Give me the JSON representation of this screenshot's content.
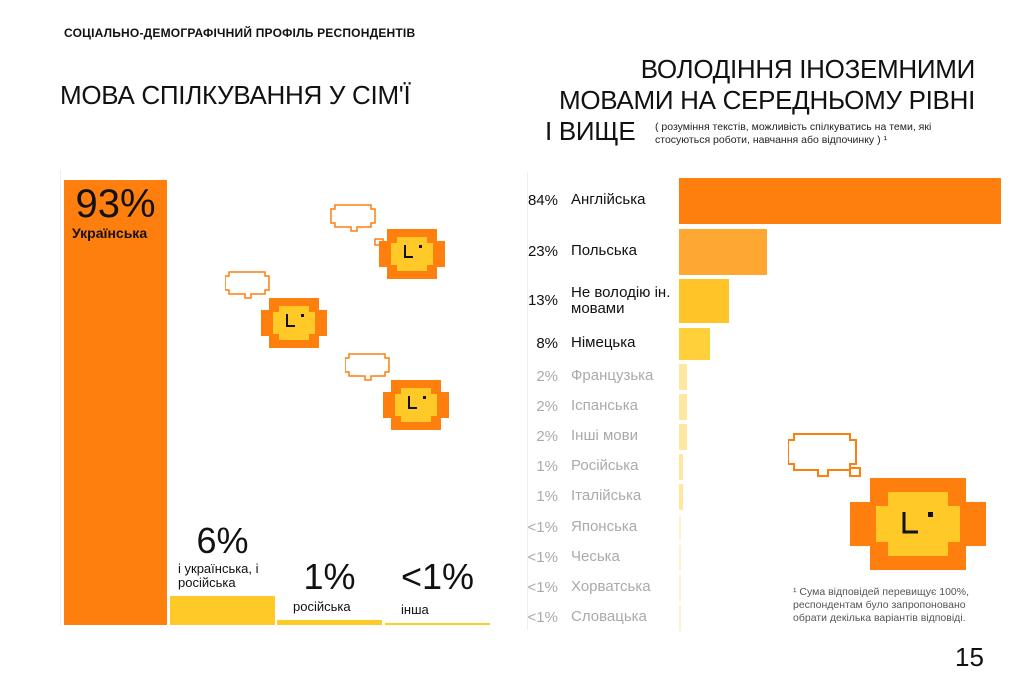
{
  "header": {
    "section_title": "СОЦІАЛЬНО-ДЕМОГРАФІЧНИЙ ПРОФІЛЬ РЕСПОНДЕНТІВ"
  },
  "left": {
    "title": "МОВА СПІЛКУВАННЯ У СІМ'Ї",
    "pct_labels": [
      "93%",
      "6%",
      "1%",
      "<1%"
    ],
    "category_labels": [
      "Українська",
      "і українська, і російська",
      "російська",
      "інша"
    ]
  },
  "right": {
    "title_line1": "ВОЛОДІННЯ ІНОЗЕМНИМИ",
    "title_line2": "МОВАМИ НА СЕРЕДНЬОМУ РІВНІ",
    "title_line3": "І ВИЩЕ",
    "subtitle": "( розуміння текстів, можливість спілкуватись на теми, які стосуються роботи, навчання або відпочинку ) ¹",
    "pct_labels": [
      "84%",
      "23%",
      "13%",
      "8%",
      "2%",
      "2%",
      "2%",
      "1%",
      "1%",
      "<1%",
      "<1%",
      "<1%",
      "<1%"
    ],
    "category_labels": [
      "Англійська",
      "Польська",
      "Не володію ін. мовами",
      "Німецька",
      "Французька",
      "Іспанська",
      "Інші мови",
      "Російська",
      "Італійська",
      "Японська",
      "Чеська",
      "Хорватська",
      "Словацька"
    ]
  },
  "chart_data": [
    {
      "type": "bar",
      "title": "МОВА СПІЛКУВАННЯ У СІМ'Ї",
      "categories": [
        "Українська",
        "і українська, і російська",
        "російська",
        "інша"
      ],
      "values": [
        93,
        6,
        1,
        0.5
      ],
      "colors": [
        "#FF7F0E",
        "#FFC928",
        "#FFC928",
        "#FFC928"
      ]
    },
    {
      "type": "bar",
      "orientation": "horizontal",
      "title": "ВОЛОДІННЯ ІНОЗЕМНИМИ МОВАМИ НА СЕРЕДНЬОМУ РІВНІ І ВИЩЕ",
      "categories": [
        "Англійська",
        "Польська",
        "Не володію ін. мовами",
        "Німецька",
        "Французька",
        "Іспанська",
        "Інші мови",
        "Російська",
        "Італійська",
        "Японська",
        "Чеська",
        "Хорватська",
        "Словацька"
      ],
      "values": [
        84,
        23,
        13,
        8,
        2,
        2,
        2,
        1,
        1,
        0.5,
        0.5,
        0.5,
        0.5
      ],
      "colors": [
        "#FF7F0E",
        "#FFA733",
        "#FFC428",
        "#FFD03A",
        "#FFE7A0",
        "#FFE7A0",
        "#FFE7A0",
        "#FFE7A0",
        "#FFE7A0",
        "#FFF1CC",
        "#FFF1CC",
        "#FFF1CC",
        "#FFF1CC"
      ]
    }
  ],
  "footnote": "¹ Сума відповідей перевищує 100%, респондентам було запропоновано обрати декілька варіантів відповіді.",
  "page_number": "15",
  "icons": [
    "sun-face-icon",
    "thought-bubble-icon"
  ],
  "colors": {
    "orange": "#FF7F0E",
    "yellow": "#FFC928"
  }
}
